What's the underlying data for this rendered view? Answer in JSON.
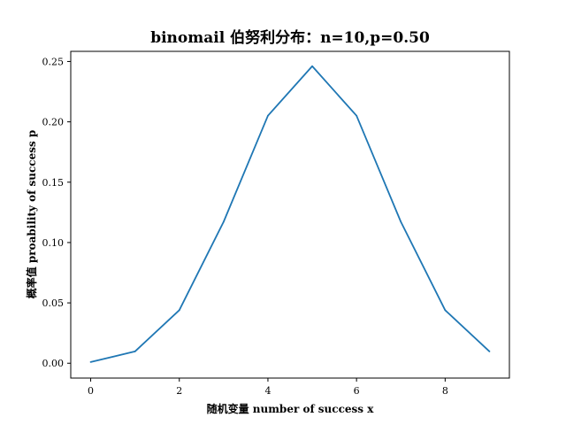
{
  "chart_data": {
    "type": "line",
    "title": "binomail 伯努利分布：n=10,p=0.50",
    "xlabel": "随机变量 number of success x",
    "ylabel": "概率值 proability of success p",
    "xlim": [
      -0.45,
      9.45
    ],
    "ylim": [
      -0.0123,
      0.2584
    ],
    "xticks": [
      0,
      2,
      4,
      6,
      8
    ],
    "yticks": [
      0.0,
      0.05,
      0.1,
      0.15,
      0.2,
      0.25
    ],
    "ytick_labels": [
      "0.00",
      "0.05",
      "0.10",
      "0.15",
      "0.20",
      "0.25"
    ],
    "grid": false,
    "series": [
      {
        "color": "#1f77b4",
        "x": [
          0,
          1,
          2,
          3,
          4,
          5,
          6,
          7,
          8,
          9
        ],
        "y": [
          0.00098,
          0.00977,
          0.04395,
          0.11719,
          0.20508,
          0.24609,
          0.20508,
          0.11719,
          0.04395,
          0.00977
        ]
      }
    ]
  }
}
